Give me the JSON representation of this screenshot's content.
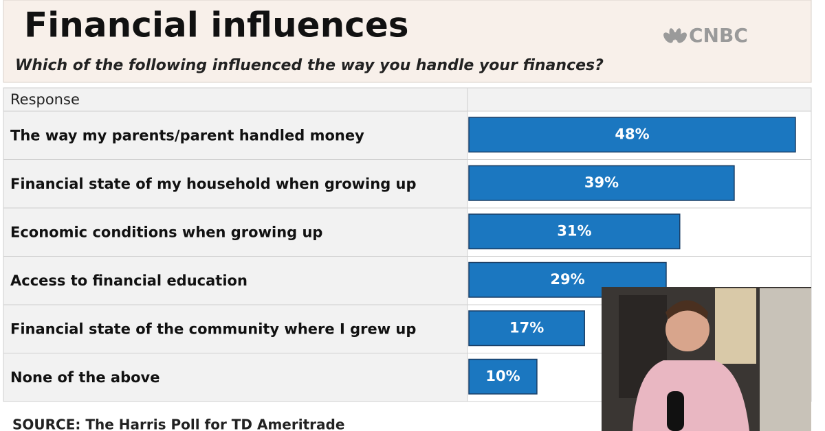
{
  "header": {
    "title": "Financial influences",
    "logo": "CNBC",
    "subtitle": "Which of the following influenced the way you handle your finances?"
  },
  "chart_data": {
    "type": "bar",
    "orientation": "horizontal",
    "column_header": "Response",
    "categories": [
      "The way my parents/parent handled money",
      "Financial state of my household when growing up",
      "Economic conditions when growing up",
      "Access to financial education",
      "Financial state of the community where I grew up",
      "None of the above"
    ],
    "values": [
      48,
      39,
      31,
      29,
      17,
      10
    ],
    "value_labels": [
      "48%",
      "39%",
      "31%",
      "29%",
      "17%",
      "10%"
    ],
    "color": "#1b77c0"
  },
  "footer": {
    "source": "SOURCE: The Harris Poll for TD Ameritrade"
  }
}
